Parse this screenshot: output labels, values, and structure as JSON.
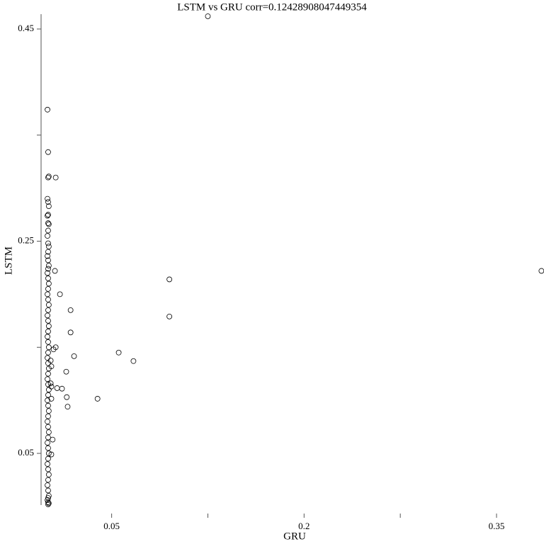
{
  "chart_data": {
    "type": "scatter",
    "title": "LSTM vs GRU corr=0.12428908047449354",
    "x_label": "GRU",
    "y_label": "LSTM",
    "xlim": [
      -0.005,
      0.387
    ],
    "ylim": [
      0.0013,
      0.464
    ],
    "xticks": [
      0.05,
      0.2,
      0.35
    ],
    "xminor": [
      0.125,
      0.275
    ],
    "yticks": [
      0.05,
      0.25,
      0.45
    ],
    "yminor": [
      0.15,
      0.35
    ],
    "color": "#000000",
    "x": [
      0,
      0.0005,
      0.001,
      0.0005,
      0,
      0.0005,
      0.001,
      0.0005,
      0,
      0.0005,
      0.001,
      0.0005,
      0,
      0.0005,
      0.001,
      0.0005,
      0,
      0.0005,
      0.001,
      0.0005,
      0,
      0.0005,
      0.001,
      0.0005,
      0,
      0.0005,
      0.001,
      0.0005,
      0,
      0.0005,
      0.001,
      0.0005,
      0,
      0.0005,
      0.001,
      0.0005,
      0,
      0.0005,
      0.001,
      0.0005,
      0,
      0.0005,
      0.001,
      0.0005,
      0,
      0.0005,
      0.001,
      0.0005,
      0,
      0.0005,
      0.001,
      0.0005,
      0,
      0.0005,
      0.001,
      0.0005,
      0,
      0.0005,
      0.001,
      0.0005,
      0,
      0.0005,
      0.001,
      0.0005,
      0,
      0.0005,
      0.001,
      0.0005,
      0.125,
      0.385,
      0.095,
      0.095,
      0.0555,
      0.067,
      0.039,
      0.0207,
      0.018,
      0.018,
      0.0097,
      0.0058,
      0.0064,
      0.0146,
      0.0113,
      0.015,
      0.0157,
      0.0075,
      0.0064,
      0.0047,
      0.003,
      0.0025,
      0.003,
      0.003,
      0.004,
      0.003,
      0.0025
    ],
    "values": [
      0.374,
      0.334,
      0.311,
      0.31,
      0.29,
      0.287,
      0.283,
      0.275,
      0.274,
      0.267,
      0.266,
      0.26,
      0.255,
      0.248,
      0.245,
      0.24,
      0.236,
      0.232,
      0.227,
      0.224,
      0.22,
      0.215,
      0.21,
      0.205,
      0.2,
      0.195,
      0.19,
      0.185,
      0.18,
      0.175,
      0.17,
      0.165,
      0.16,
      0.155,
      0.15,
      0.145,
      0.14,
      0.135,
      0.13,
      0.125,
      0.12,
      0.115,
      0.11,
      0.105,
      0.1,
      0.095,
      0.09,
      0.085,
      0.08,
      0.075,
      0.07,
      0.065,
      0.06,
      0.055,
      0.05,
      0.045,
      0.04,
      0.035,
      0.03,
      0.025,
      0.02,
      0.015,
      0.01,
      0.008,
      0.006,
      0.004,
      0.003,
      0.002,
      0.462,
      0.222,
      0.214,
      0.179,
      0.145,
      0.137,
      0.1015,
      0.1416,
      0.185,
      0.164,
      0.2,
      0.222,
      0.31,
      0.127,
      0.111,
      0.103,
      0.094,
      0.1115,
      0.15,
      0.148,
      0.132,
      0.1375,
      0.113,
      0.1015,
      0.063,
      0.049,
      0.116
    ]
  }
}
